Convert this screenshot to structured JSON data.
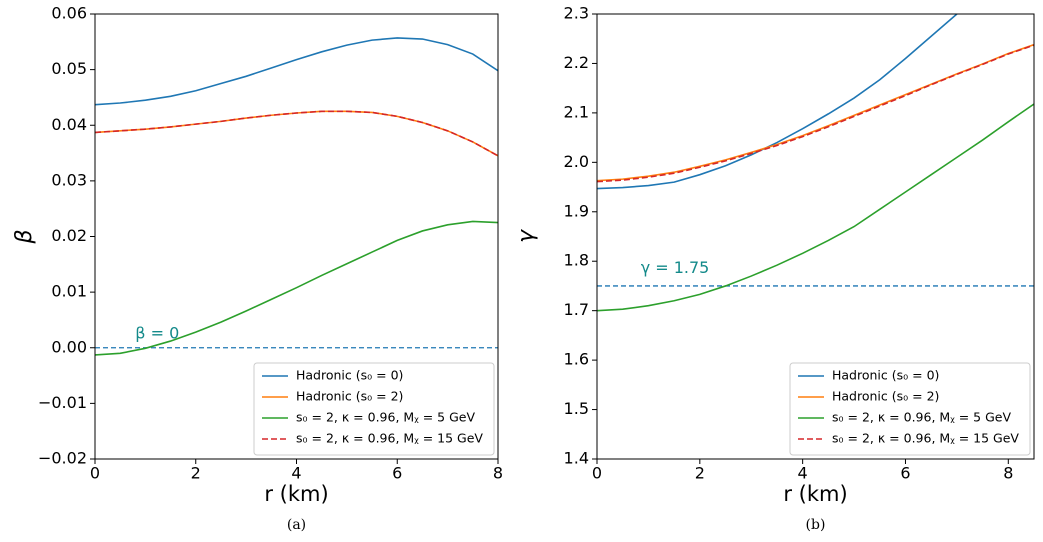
{
  "chart_data": [
    {
      "type": "line",
      "caption": "(a)",
      "xlabel": "r (km)",
      "ylabel": "β",
      "x": [
        0,
        0.5,
        1,
        1.5,
        2,
        2.5,
        3,
        3.5,
        4,
        4.5,
        5,
        5.5,
        6,
        6.5,
        7,
        7.5,
        8
      ],
      "xlim": [
        0,
        8
      ],
      "xticks": [
        0,
        2,
        4,
        6,
        8
      ],
      "ylim": [
        -0.02,
        0.06
      ],
      "yticks": [
        {
          "value": -0.02,
          "label": "−0.02"
        },
        {
          "value": -0.01,
          "label": "−0.01"
        },
        {
          "value": 0,
          "label": "0.00"
        },
        0.01,
        0.02,
        0.03,
        0.04,
        0.05,
        0.06
      ],
      "series": [
        {
          "name": "Hadronic (s₀ = 0)",
          "color": "#1f77b4",
          "linestyle": "solid",
          "values": [
            0.0437,
            0.044,
            0.0445,
            0.0452,
            0.0462,
            0.0475,
            0.0488,
            0.0503,
            0.0518,
            0.0532,
            0.0544,
            0.0553,
            0.0557,
            0.0555,
            0.0545,
            0.0528,
            0.0498
          ]
        },
        {
          "name": "Hadronic (s₀ = 2)",
          "color": "#ff7f0e",
          "linestyle": "solid",
          "values": [
            0.0387,
            0.039,
            0.0393,
            0.0397,
            0.0402,
            0.0407,
            0.0413,
            0.0418,
            0.0422,
            0.0425,
            0.0425,
            0.0423,
            0.0416,
            0.0405,
            0.039,
            0.037,
            0.0345
          ]
        },
        {
          "name": "s₀ = 2, κ = 0.96, Mᵪ = 5 GeV",
          "color": "#2ca02c",
          "linestyle": "solid",
          "values": [
            -0.0013,
            -0.001,
            -0.0001,
            0.0012,
            0.0028,
            0.0046,
            0.0066,
            0.0087,
            0.0108,
            0.013,
            0.0151,
            0.0172,
            0.0193,
            0.021,
            0.0221,
            0.0227,
            0.0225
          ]
        },
        {
          "name": "s₀ = 2, κ = 0.96, Mᵪ = 15 GeV",
          "color": "#d62728",
          "linestyle": "dashed",
          "values": [
            0.0387,
            0.039,
            0.0393,
            0.0397,
            0.0402,
            0.0407,
            0.0413,
            0.0418,
            0.0422,
            0.0425,
            0.0425,
            0.0423,
            0.0416,
            0.0405,
            0.039,
            0.037,
            0.0345
          ]
        }
      ],
      "hline": {
        "y": 0,
        "color": "#1f77b4"
      },
      "annotation": {
        "text": "β = 0",
        "x": 0.8,
        "y": 0.0025,
        "color": "#148a8a"
      },
      "legend": "lower right"
    },
    {
      "type": "line",
      "caption": "(b)",
      "xlabel": "r (km)",
      "ylabel": "γ",
      "x": [
        0,
        0.5,
        1,
        1.5,
        2,
        2.5,
        3,
        3.5,
        4,
        4.5,
        5,
        5.5,
        6,
        6.5,
        7,
        7.5,
        8,
        8.5
      ],
      "xlim": [
        0,
        8.5
      ],
      "xticks": [
        0,
        2,
        4,
        6,
        8
      ],
      "ylim": [
        1.4,
        2.3
      ],
      "yticks": [
        1.4,
        1.5,
        1.6,
        1.7,
        1.8,
        1.9,
        {
          "value": 2.0,
          "label": "2.0"
        },
        2.1,
        2.2,
        2.3
      ],
      "series": [
        {
          "name": "Hadronic (s₀ = 0)",
          "color": "#1f77b4",
          "linestyle": "solid",
          "values": [
            1.947,
            1.949,
            1.953,
            1.96,
            1.975,
            1.993,
            2.015,
            2.04,
            2.068,
            2.098,
            2.13,
            2.167,
            2.21,
            2.255,
            2.3,
            null,
            null,
            null
          ]
        },
        {
          "name": "Hadronic (s₀ = 2)",
          "color": "#ff7f0e",
          "linestyle": "solid",
          "values": [
            1.963,
            1.966,
            1.972,
            1.98,
            1.992,
            2.005,
            2.02,
            2.036,
            2.054,
            2.074,
            2.095,
            2.116,
            2.137,
            2.158,
            2.179,
            2.199,
            2.22,
            2.238
          ]
        },
        {
          "name": "s₀ = 2, κ = 0.96, Mᵪ = 5 GeV",
          "color": "#2ca02c",
          "linestyle": "solid",
          "values": [
            1.7,
            1.703,
            1.71,
            1.72,
            1.733,
            1.75,
            1.77,
            1.792,
            1.816,
            1.842,
            1.87,
            1.905,
            1.94,
            1.975,
            2.01,
            2.045,
            2.082,
            2.118
          ]
        },
        {
          "name": "s₀ = 2, κ = 0.96, Mᵪ = 15 GeV",
          "color": "#d62728",
          "linestyle": "dashed",
          "values": [
            1.961,
            1.964,
            1.97,
            1.978,
            1.99,
            2.003,
            2.018,
            2.034,
            2.052,
            2.072,
            2.093,
            2.114,
            2.135,
            2.157,
            2.178,
            2.198,
            2.219,
            2.237
          ]
        }
      ],
      "hline": {
        "y": 1.75,
        "color": "#1f77b4"
      },
      "annotation": {
        "text": "γ = 1.75",
        "x": 0.85,
        "y": 1.785,
        "color": "#148a8a"
      },
      "legend": "lower right"
    }
  ]
}
